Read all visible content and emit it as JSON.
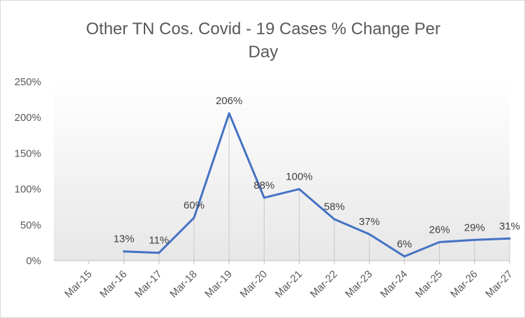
{
  "chart_data": {
    "type": "line",
    "title_lines": [
      "Other TN Cos. Covid - 19 Cases % Change Per",
      "Day"
    ],
    "categories": [
      "Mar-15",
      "Mar-16",
      "Mar-17",
      "Mar-18",
      "Mar-19",
      "Mar-20",
      "Mar-21",
      "Mar-22",
      "Mar-23",
      "Mar-24",
      "Mar-25",
      "Mar-26",
      "Mar-27"
    ],
    "series": [
      {
        "color": "#4472c4",
        "values": [
          null,
          13,
          11,
          60,
          206,
          88,
          100,
          58,
          37,
          6,
          26,
          29,
          31
        ],
        "data_labels": [
          "",
          "13%",
          "11%",
          "60%",
          "206%",
          "88%",
          "100%",
          "58%",
          "37%",
          "6%",
          "26%",
          "29%",
          "31%"
        ]
      }
    ],
    "ylim": [
      0,
      250
    ],
    "yticks": [
      0,
      50,
      100,
      150,
      200,
      250
    ],
    "ytick_labels": [
      "0%",
      "50%",
      "100%",
      "150%",
      "200%",
      "250%"
    ],
    "drop_lines": true,
    "plot_background": "gradient white to light gray",
    "gridlines": false,
    "legend": "none"
  }
}
